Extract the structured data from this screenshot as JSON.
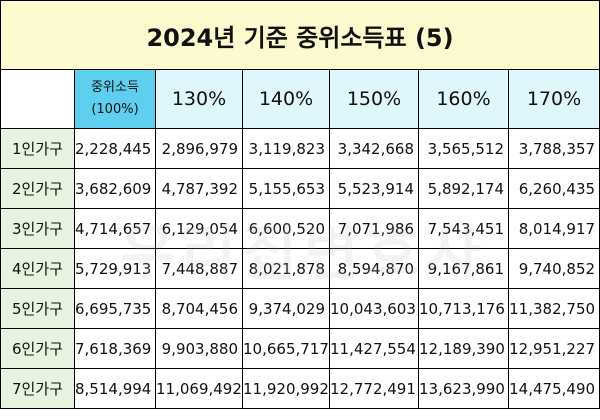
{
  "title": "2024년 기준 중위소득표 (5)",
  "headers": {
    "corner": "",
    "median_line1": "중위소득",
    "median_line2": "(100%)",
    "pct": [
      "130%",
      "140%",
      "150%",
      "160%",
      "170%"
    ]
  },
  "rows": [
    {
      "label": "1인가구",
      "values": [
        "2,228,445",
        "2,896,979",
        "3,119,823",
        "3,342,668",
        "3,565,512",
        "3,788,357"
      ]
    },
    {
      "label": "2인가구",
      "values": [
        "3,682,609",
        "4,787,392",
        "5,155,653",
        "5,523,914",
        "5,892,174",
        "6,260,435"
      ]
    },
    {
      "label": "3인가구",
      "values": [
        "4,714,657",
        "6,129,054",
        "6,600,520",
        "7,071,986",
        "7,543,451",
        "8,014,917"
      ]
    },
    {
      "label": "4인가구",
      "values": [
        "5,729,913",
        "7,448,887",
        "8,021,878",
        "8,594,870",
        "9,167,861",
        "9,740,852"
      ]
    },
    {
      "label": "5인가구",
      "values": [
        "6,695,735",
        "8,704,456",
        "9,374,029",
        "10,043,603",
        "10,713,176",
        "11,382,750"
      ]
    },
    {
      "label": "6인가구",
      "values": [
        "7,618,369",
        "9,903,880",
        "10,665,717",
        "11,427,554",
        "12,189,390",
        "12,951,227"
      ]
    },
    {
      "label": "7인가구",
      "values": [
        "8,514,994",
        "11,069,492",
        "11,920,992",
        "12,772,491",
        "13,623,990",
        "14,475,490"
      ]
    }
  ],
  "watermark": "우리집변호사",
  "colors": {
    "title_bg": "#fdfacf",
    "header_bg": "#dff6fa",
    "median_bg": "#5fcff0",
    "rowhead_bg": "#e6f4df"
  }
}
